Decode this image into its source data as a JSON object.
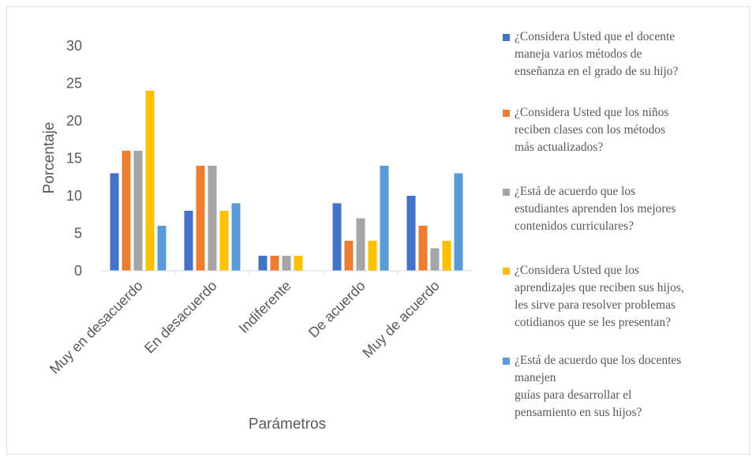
{
  "chart_data": {
    "type": "bar",
    "ylabel": "Porcentaje",
    "xlabel": "Parámetros",
    "ylim": [
      0,
      30
    ],
    "yticks": [
      0,
      5,
      10,
      15,
      20,
      25,
      30
    ],
    "grid": false,
    "legend_position": "right",
    "categories": [
      "Muy en desacuerdo",
      "En desacuerdo",
      "Indiferente",
      "De acuerdo",
      "Muy de acuerdo"
    ],
    "series": [
      {
        "name": "¿Considera Usted que el docente\nmaneja varios métodos  de\nenseñanza en el grado de su hijo?",
        "color": "#4472c4",
        "values": [
          13,
          8,
          2,
          9,
          10
        ]
      },
      {
        "name": "¿Considera Usted que los niños\nreciben clases con los métodos\nmás actualizados?",
        "color": "#ed7d31",
        "values": [
          16,
          14,
          2,
          4,
          6
        ]
      },
      {
        "name": "¿Está de acuerdo que los\nestudiantes aprenden los mejores\ncontenidos curriculares?",
        "color": "#a5a5a5",
        "values": [
          16,
          14,
          2,
          7,
          3
        ]
      },
      {
        "name": "¿Considera Usted que los\naprendizajes que reciben sus hijos,\nles sirve para resolver problemas\ncotidianos que se les presentan?",
        "color": "#ffc000",
        "values": [
          24,
          8,
          2,
          4,
          4
        ]
      },
      {
        "name": "¿Está de acuerdo que los docentes\nmanejen\nguías para desarrollar el\npensamiento en sus hijos?",
        "color": "#5b9bd5",
        "values": [
          6,
          9,
          0,
          14,
          13
        ]
      }
    ]
  }
}
